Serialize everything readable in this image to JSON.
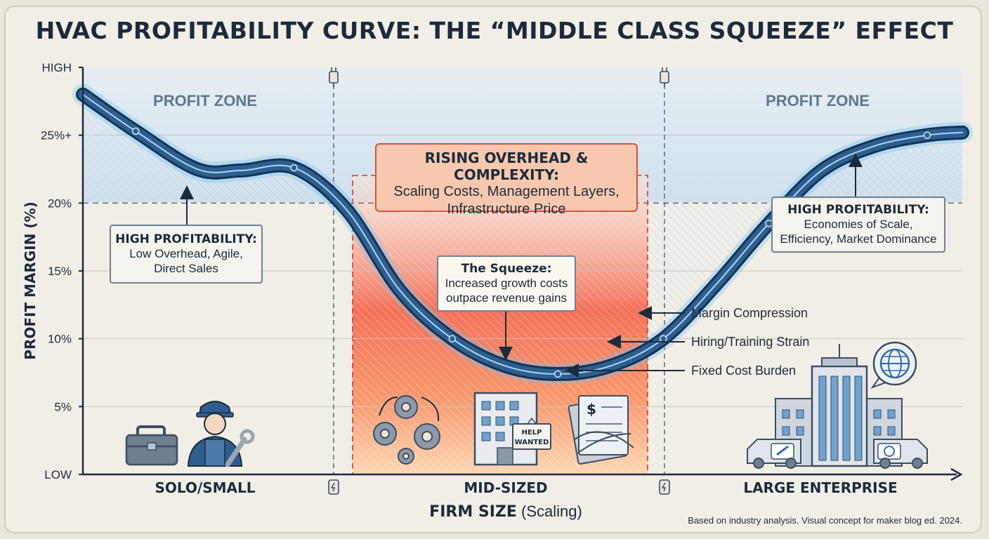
{
  "title": "HVAC PROFITABILITY CURVE: THE “MIDDLE CLASS SQUEEZE” EFFECT",
  "chart_data": {
    "type": "line",
    "title": "HVAC PROFITABILITY CURVE: THE “MIDDLE CLASS SQUEEZE” EFFECT",
    "xlabel_bold": "FIRM SIZE",
    "xlabel_rest": "(Scaling)",
    "ylabel": "PROFIT MARGIN (%)",
    "categories": [
      "SOLO/SMALL",
      "MID-SIZED",
      "LARGE ENTERPRISE"
    ],
    "y_ticks": [
      "HIGH",
      "25%+",
      "20%",
      "15%",
      "10%",
      "5%",
      "LOW"
    ],
    "ylim": [
      0,
      30
    ],
    "zone_threshold": 20,
    "zone_labels": [
      "PROFIT ZONE",
      "PROFIT ZONE"
    ],
    "series": [
      {
        "x": [
          0,
          0.06,
          0.13,
          0.18,
          0.24,
          0.3,
          0.36,
          0.42,
          0.48,
          0.54,
          0.6,
          0.66,
          0.72,
          0.78,
          0.84,
          0.9,
          0.96,
          1.0
        ],
        "values": [
          28,
          25.3,
          22.5,
          22.4,
          22.6,
          19.5,
          13.6,
          10,
          8,
          7.4,
          8,
          10,
          14,
          18.5,
          22.4,
          24.2,
          25,
          25.2
        ]
      }
    ],
    "colors": {
      "curve": "#2e5e8e",
      "curve_dark": "#123459",
      "glow": "#6fc4ef",
      "profit_zone": "#cfe3f2",
      "squeeze_top": "#ef5a47",
      "squeeze_bottom": "#fbd6b3",
      "grid": "#c9c6be"
    }
  },
  "annotations": {
    "left": {
      "heading": "HIGH PROFITABILITY:",
      "lines": [
        "Low Overhead, Agile,",
        "Direct Sales"
      ]
    },
    "right": {
      "heading": "HIGH PROFITABILITY:",
      "lines": [
        "Economies of Scale,",
        "Efficiency, Market Dominance"
      ]
    },
    "overhead": {
      "heading": "RISING OVERHEAD & COMPLEXITY:",
      "lines": [
        "Scaling Costs, Management Layers,",
        "Infrastructure Price"
      ]
    },
    "squeeze": {
      "heading": "The Squeeze:",
      "lines": [
        "Increased growth costs",
        "outpace revenue gains"
      ]
    },
    "side": [
      "Margin Compression",
      "Hiring/Training Strain",
      "Fixed Cost Burden"
    ]
  },
  "icons": [
    "toolbox-icon",
    "technician-icon",
    "gears-icon",
    "office-building-icon",
    "help-wanted-sign-icon",
    "invoice-pile-icon",
    "skyscraper-icon",
    "globe-icon",
    "service-van-icon",
    "plug-icon"
  ],
  "help_sign": [
    "HELP",
    "WANTED"
  ],
  "footer": {
    "source": "Based on industry analysis. Visual concept for maker blog ed. 2024."
  }
}
